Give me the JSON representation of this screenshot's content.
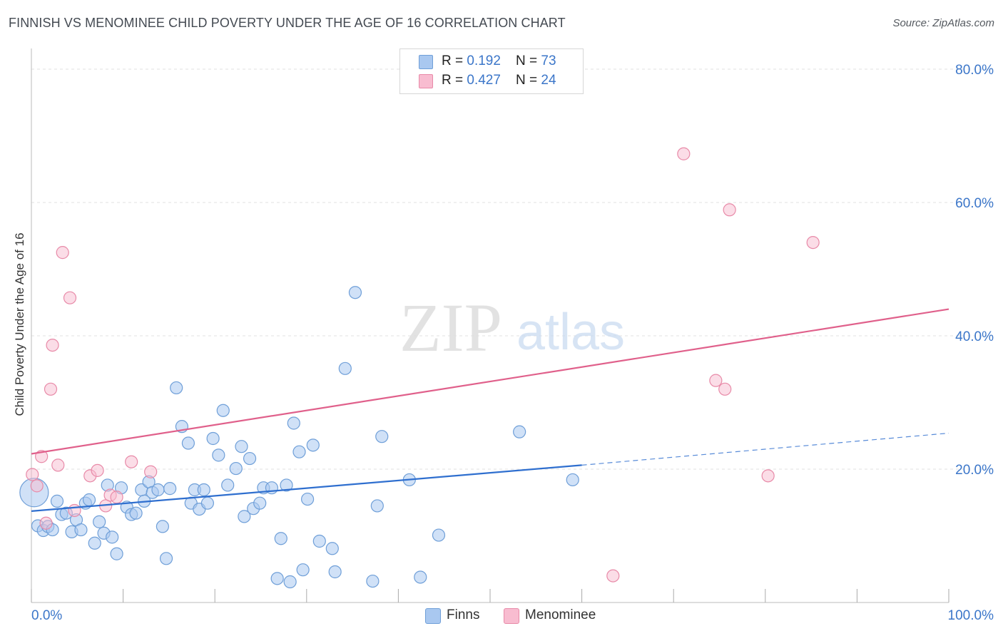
{
  "header": {
    "title": "FINNISH VS MENOMINEE CHILD POVERTY UNDER THE AGE OF 16 CORRELATION CHART",
    "source": "Source: ZipAtlas.com"
  },
  "watermark": {
    "zip": "ZIP",
    "atlas": "atlas"
  },
  "legend_top": {
    "rows": [
      {
        "r_label": "R = ",
        "r_value": "0.192",
        "n_label": "N = ",
        "n_value": "73"
      },
      {
        "r_label": "R = ",
        "r_value": "0.427",
        "n_label": "N = ",
        "n_value": "24"
      }
    ]
  },
  "legend_bottom": {
    "items": [
      "Finns",
      "Menominee"
    ]
  },
  "colors": {
    "finns_fill": "#a9c8f0",
    "finns_stroke": "#6f9fd8",
    "finns_line": "#2f6fcf",
    "menominee_fill": "#f8bcd0",
    "menominee_stroke": "#e88aa8",
    "menominee_line": "#e0608b",
    "tick_label": "#3b76c9",
    "grid": "#e2e2e2"
  },
  "chart_data": {
    "type": "scatter",
    "title": "FINNISH VS MENOMINEE CHILD POVERTY UNDER THE AGE OF 16 CORRELATION CHART",
    "xlabel": "",
    "ylabel": "Child Poverty Under the Age of 16",
    "xlim": [
      0,
      100
    ],
    "ylim": [
      0,
      80
    ],
    "x_tick_labels": [
      {
        "value": 0,
        "label": "0.0%"
      },
      {
        "value": 100,
        "label": "100.0%"
      }
    ],
    "y_tick_labels": [
      {
        "value": 20,
        "label": "20.0%"
      },
      {
        "value": 40,
        "label": "40.0%"
      },
      {
        "value": 60,
        "label": "60.0%"
      },
      {
        "value": 80,
        "label": "80.0%"
      }
    ],
    "grid": true,
    "legend_position": "bottom",
    "series": [
      {
        "name": "Finns",
        "points": [
          [
            0.3,
            16.5
          ],
          [
            0.7,
            11.5
          ],
          [
            1.3,
            10.8
          ],
          [
            1.8,
            11.4
          ],
          [
            2.3,
            10.9
          ],
          [
            2.8,
            15.2
          ],
          [
            3.3,
            13.2
          ],
          [
            3.8,
            13.4
          ],
          [
            4.4,
            10.6
          ],
          [
            4.9,
            12.4
          ],
          [
            5.4,
            10.9
          ],
          [
            5.9,
            14.9
          ],
          [
            6.3,
            15.4
          ],
          [
            6.9,
            8.9
          ],
          [
            7.4,
            12.1
          ],
          [
            7.9,
            10.4
          ],
          [
            8.3,
            17.6
          ],
          [
            8.8,
            9.8
          ],
          [
            9.3,
            7.3
          ],
          [
            9.8,
            17.2
          ],
          [
            10.4,
            14.3
          ],
          [
            10.9,
            13.2
          ],
          [
            11.4,
            13.4
          ],
          [
            12.0,
            16.9
          ],
          [
            12.3,
            15.2
          ],
          [
            12.8,
            18.1
          ],
          [
            13.2,
            16.5
          ],
          [
            13.8,
            16.9
          ],
          [
            14.3,
            11.4
          ],
          [
            14.7,
            6.6
          ],
          [
            15.1,
            17.1
          ],
          [
            15.8,
            32.2
          ],
          [
            16.4,
            26.4
          ],
          [
            17.1,
            23.9
          ],
          [
            17.4,
            14.9
          ],
          [
            17.8,
            16.9
          ],
          [
            18.3,
            14.0
          ],
          [
            18.8,
            16.9
          ],
          [
            19.2,
            14.9
          ],
          [
            19.8,
            24.6
          ],
          [
            20.4,
            22.1
          ],
          [
            20.9,
            28.8
          ],
          [
            21.4,
            17.6
          ],
          [
            22.3,
            20.1
          ],
          [
            22.9,
            23.4
          ],
          [
            23.2,
            12.9
          ],
          [
            23.8,
            21.6
          ],
          [
            24.2,
            14.1
          ],
          [
            24.9,
            14.9
          ],
          [
            25.3,
            17.2
          ],
          [
            26.2,
            17.2
          ],
          [
            26.8,
            3.6
          ],
          [
            27.2,
            9.6
          ],
          [
            27.8,
            17.6
          ],
          [
            28.2,
            3.1
          ],
          [
            28.6,
            26.9
          ],
          [
            29.2,
            22.6
          ],
          [
            29.6,
            4.9
          ],
          [
            30.1,
            15.5
          ],
          [
            30.7,
            23.6
          ],
          [
            31.4,
            9.2
          ],
          [
            32.8,
            8.1
          ],
          [
            33.1,
            4.6
          ],
          [
            34.2,
            35.1
          ],
          [
            35.3,
            46.5
          ],
          [
            37.2,
            3.2
          ],
          [
            37.7,
            14.5
          ],
          [
            38.2,
            24.9
          ],
          [
            41.2,
            18.4
          ],
          [
            42.4,
            3.8
          ],
          [
            44.4,
            10.1
          ],
          [
            53.2,
            25.6
          ],
          [
            59.0,
            18.4
          ]
        ],
        "trend": {
          "x1": 0,
          "y1": 13.7,
          "x2": 60,
          "y2": 20.6,
          "dashed_x2": 100,
          "dashed_y2": 25.4
        }
      },
      {
        "name": "Menominee",
        "points": [
          [
            0.1,
            19.2
          ],
          [
            0.6,
            17.5
          ],
          [
            1.1,
            21.9
          ],
          [
            1.6,
            11.9
          ],
          [
            2.1,
            32.0
          ],
          [
            2.3,
            38.6
          ],
          [
            2.9,
            20.6
          ],
          [
            3.4,
            52.5
          ],
          [
            4.2,
            45.7
          ],
          [
            4.7,
            13.8
          ],
          [
            6.4,
            19.0
          ],
          [
            7.2,
            19.8
          ],
          [
            8.1,
            14.5
          ],
          [
            8.6,
            16.1
          ],
          [
            9.3,
            15.8
          ],
          [
            10.9,
            21.1
          ],
          [
            13.0,
            19.6
          ],
          [
            63.4,
            4.0
          ],
          [
            71.1,
            67.3
          ],
          [
            74.6,
            33.3
          ],
          [
            75.6,
            32.0
          ],
          [
            76.1,
            58.9
          ],
          [
            80.3,
            19.0
          ],
          [
            85.2,
            54.0
          ]
        ],
        "trend": {
          "x1": 0,
          "y1": 22.3,
          "x2": 100,
          "y2": 44.0
        }
      }
    ]
  }
}
